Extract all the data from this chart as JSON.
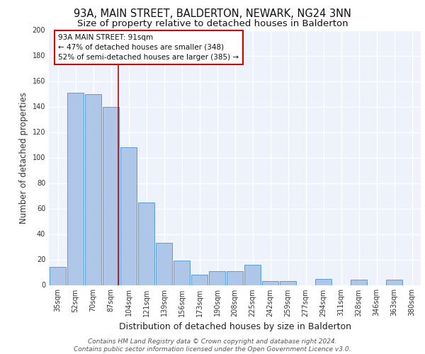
{
  "title": "93A, MAIN STREET, BALDERTON, NEWARK, NG24 3NN",
  "subtitle": "Size of property relative to detached houses in Balderton",
  "xlabel": "Distribution of detached houses by size in Balderton",
  "ylabel": "Number of detached properties",
  "bar_labels": [
    "35sqm",
    "52sqm",
    "70sqm",
    "87sqm",
    "104sqm",
    "121sqm",
    "139sqm",
    "156sqm",
    "173sqm",
    "190sqm",
    "208sqm",
    "225sqm",
    "242sqm",
    "259sqm",
    "277sqm",
    "294sqm",
    "311sqm",
    "328sqm",
    "346sqm",
    "363sqm",
    "380sqm"
  ],
  "bar_values": [
    14,
    151,
    150,
    140,
    108,
    65,
    33,
    19,
    8,
    11,
    11,
    16,
    3,
    3,
    0,
    5,
    0,
    4,
    0,
    4,
    0
  ],
  "bar_color": "#aec6e8",
  "bar_edge_color": "#5b9bd5",
  "ylim": [
    0,
    200
  ],
  "yticks": [
    0,
    20,
    40,
    60,
    80,
    100,
    120,
    140,
    160,
    180,
    200
  ],
  "subject_label": "93A MAIN STREET: 91sqm",
  "annotation_line1": "← 47% of detached houses are smaller (348)",
  "annotation_line2": "52% of semi-detached houses are larger (385) →",
  "background_color": "#edf2fb",
  "grid_color": "#ffffff",
  "footer_line1": "Contains HM Land Registry data © Crown copyright and database right 2024.",
  "footer_line2": "Contains public sector information licensed under the Open Government Licence v3.0.",
  "title_fontsize": 10.5,
  "subtitle_fontsize": 9.5,
  "xlabel_fontsize": 9,
  "ylabel_fontsize": 8.5,
  "tick_fontsize": 7,
  "footer_fontsize": 6.5,
  "annot_fontsize": 7.5
}
